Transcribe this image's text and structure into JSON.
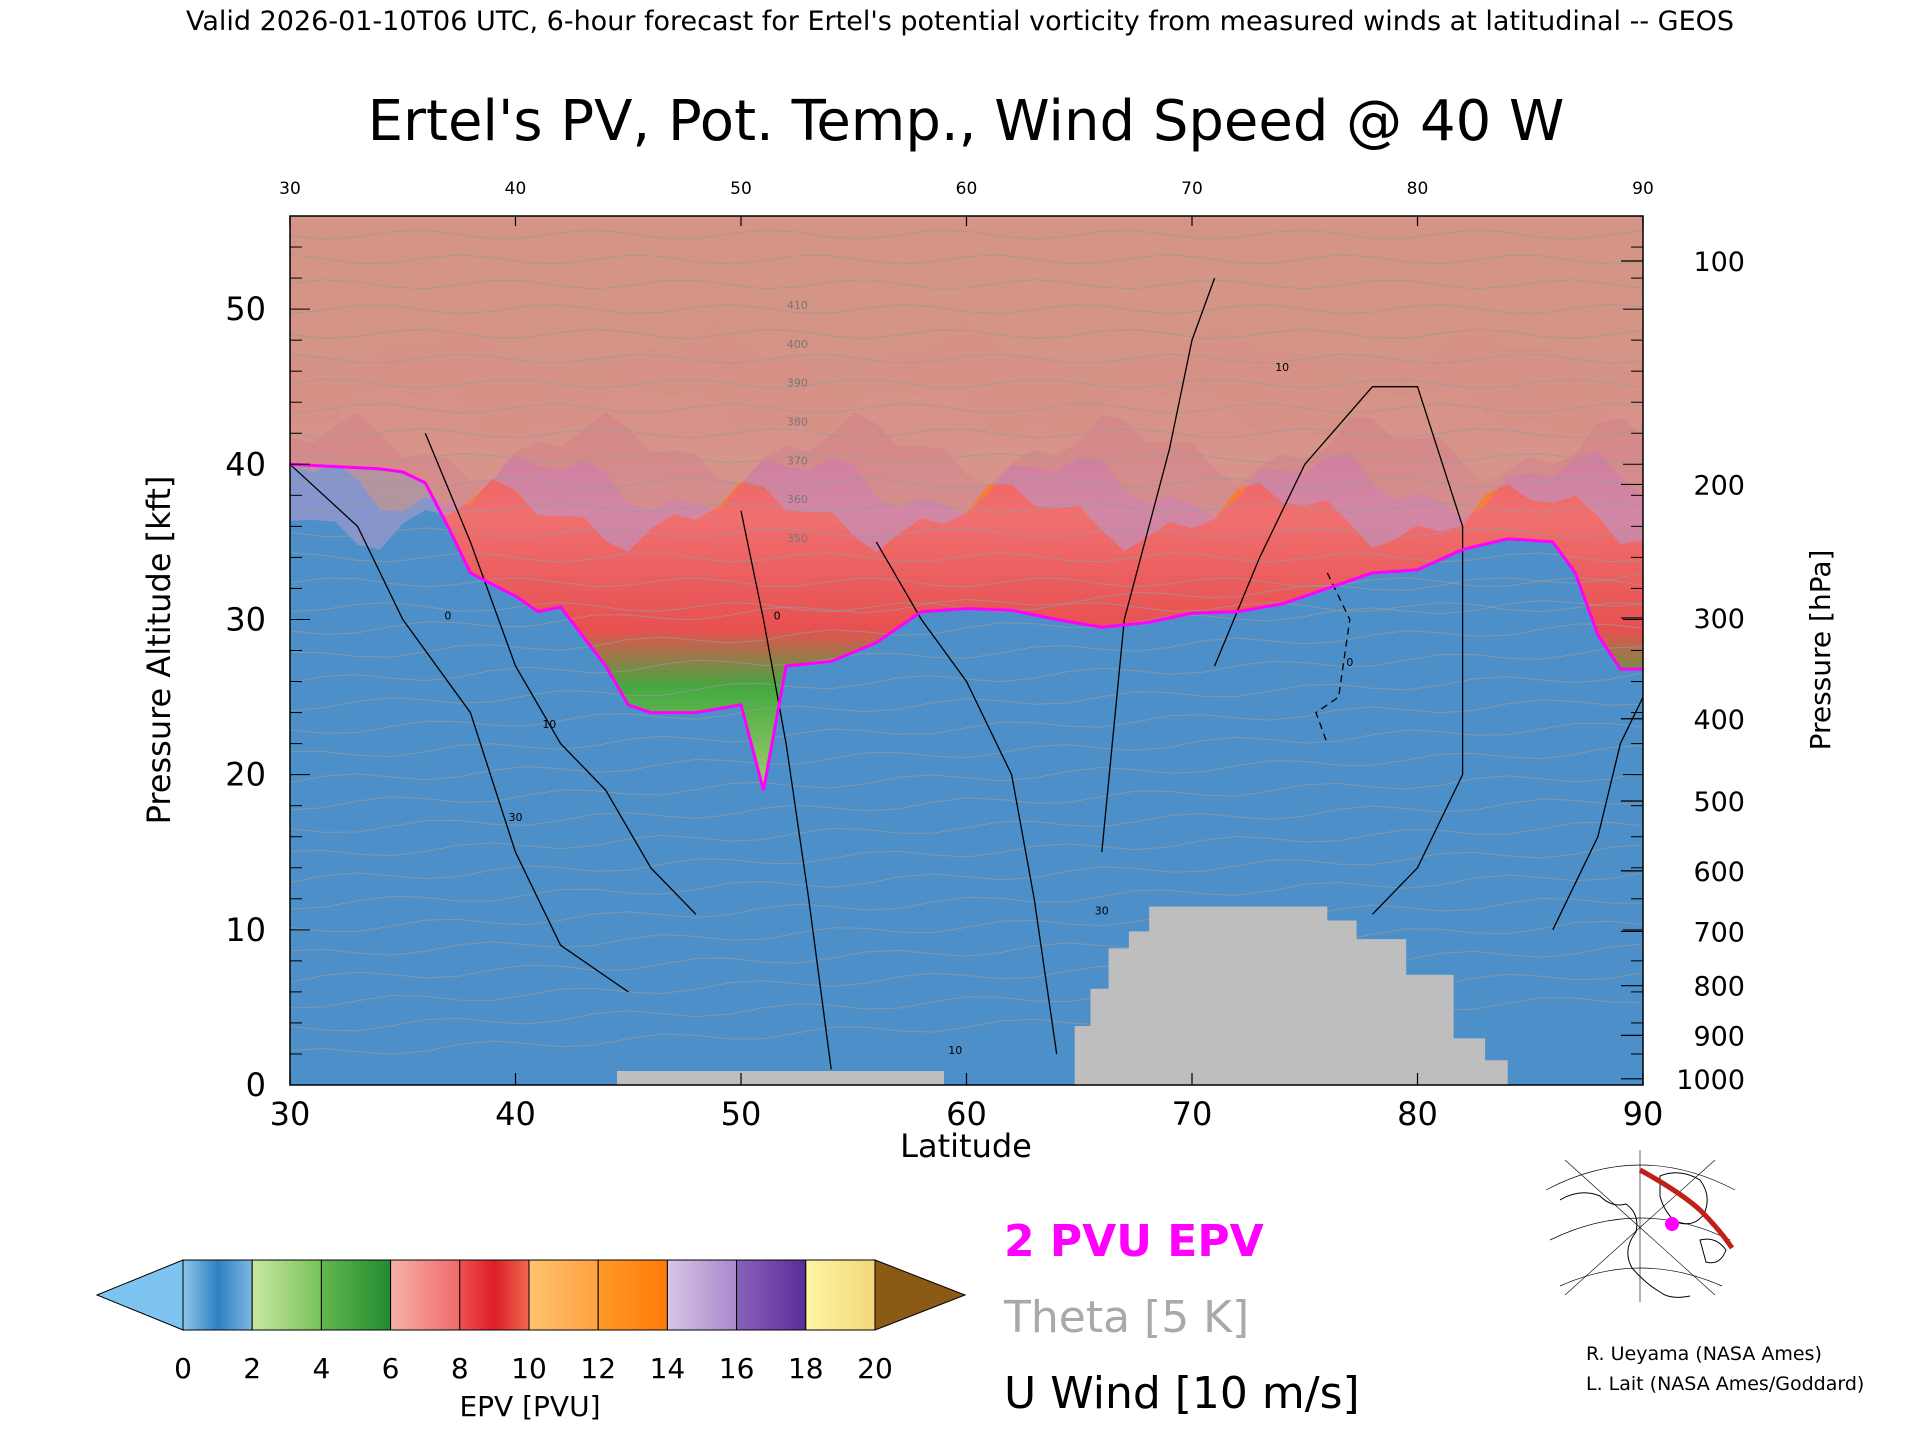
{
  "header": "Valid 2026-01-10T06 UTC, 6-hour forecast for Ertel's potential vorticity from measured winds at latitudinal -- GEOS",
  "chart_data": {
    "type": "heatmap",
    "title": "Ertel's PV, Pot. Temp., Wind Speed @ 40 W",
    "xlabel": "Latitude",
    "ylabel": "Pressure Altitude [kft]",
    "ylabel_right": "Pressure [hPa]",
    "xlim": [
      30,
      90
    ],
    "ylim": [
      0,
      56
    ],
    "x_ticks": [
      30,
      40,
      50,
      60,
      70,
      80,
      90
    ],
    "top_ticks": [
      30,
      40,
      50,
      60,
      70,
      80,
      90
    ],
    "y_ticks": [
      0,
      10,
      20,
      30,
      40,
      50
    ],
    "pressure_ticks": [
      {
        "label": "100",
        "kft": 53.1
      },
      {
        "label": "200",
        "kft": 38.7
      },
      {
        "label": "300",
        "kft": 30.1
      },
      {
        "label": "400",
        "kft": 23.6
      },
      {
        "label": "500",
        "kft": 18.3
      },
      {
        "label": "600",
        "kft": 13.8
      },
      {
        "label": "700",
        "kft": 9.9
      },
      {
        "label": "800",
        "kft": 6.4
      },
      {
        "label": "900",
        "kft": 3.2
      },
      {
        "label": "1000",
        "kft": 0.4
      }
    ],
    "pv2_boundary": [
      [
        30,
        40
      ],
      [
        34,
        39.7
      ],
      [
        35,
        39.5
      ],
      [
        36,
        38.8
      ],
      [
        37,
        36
      ],
      [
        38,
        33
      ],
      [
        40,
        31.5
      ],
      [
        41,
        30.5
      ],
      [
        42,
        30.8
      ],
      [
        44,
        27
      ],
      [
        45,
        24.5
      ],
      [
        46,
        24
      ],
      [
        48,
        24
      ],
      [
        50,
        24.5
      ],
      [
        51,
        19
      ],
      [
        52,
        27
      ],
      [
        54,
        27.3
      ],
      [
        56,
        28.5
      ],
      [
        58,
        30.5
      ],
      [
        60,
        30.7
      ],
      [
        62,
        30.6
      ],
      [
        64,
        30
      ],
      [
        66,
        29.5
      ],
      [
        68,
        29.8
      ],
      [
        70,
        30.4
      ],
      [
        72,
        30.5
      ],
      [
        74,
        31
      ],
      [
        76,
        32
      ],
      [
        78,
        33
      ],
      [
        80,
        33.2
      ],
      [
        82,
        34.5
      ],
      [
        84,
        35.2
      ],
      [
        86,
        35
      ],
      [
        87,
        33
      ],
      [
        88,
        29
      ],
      [
        89,
        26.8
      ],
      [
        90,
        26.8
      ]
    ],
    "epv_bands": [
      {
        "kft": 47.0,
        "pvu": 3.5
      },
      {
        "kft": 43.5,
        "pvu": 8.0
      },
      {
        "kft": 41.0,
        "pvu": 11.0
      },
      {
        "kft": 38.7,
        "pvu": 13.0
      },
      {
        "kft": 36.7,
        "pvu": 15.0
      }
    ],
    "colorbar": {
      "label": "EPV [PVU]",
      "ticks": [
        "0",
        "2",
        "4",
        "6",
        "8",
        "10",
        "12",
        "14",
        "16",
        "18",
        "20"
      ],
      "colors": [
        "#2f7fc4",
        "#9fd26c",
        "#3aa33b",
        "#f49a9a",
        "#e32d2d",
        "#ffb65c",
        "#ff8a10",
        "#b89ad2",
        "#6b3ea8",
        "#f4e88c"
      ],
      "under_color": "#7dc4f0",
      "over_color": "#8a5a16"
    },
    "terrain": [
      [
        44.5,
        0
      ],
      [
        44.5,
        0.9
      ],
      [
        59,
        0.9
      ],
      [
        59,
        0
      ],
      [
        64.8,
        0
      ],
      [
        64.8,
        3.8
      ],
      [
        65.5,
        3.8
      ],
      [
        65.5,
        6.2
      ],
      [
        66.3,
        6.2
      ],
      [
        66.3,
        8.8
      ],
      [
        67.2,
        8.8
      ],
      [
        67.2,
        9.9
      ],
      [
        68.1,
        9.9
      ],
      [
        68.1,
        11.5
      ],
      [
        76,
        11.5
      ],
      [
        76,
        10.6
      ],
      [
        77.3,
        10.6
      ],
      [
        77.3,
        9.4
      ],
      [
        79.5,
        9.4
      ],
      [
        79.5,
        7.1
      ],
      [
        81.6,
        7.1
      ],
      [
        81.6,
        3
      ],
      [
        83,
        3
      ],
      [
        83,
        1.6
      ],
      [
        84,
        1.6
      ],
      [
        84,
        0
      ]
    ],
    "u_wind_levels": [
      "0",
      "10",
      "30"
    ],
    "legend": [
      {
        "text": "2 PVU EPV",
        "color": "#ff00ff"
      },
      {
        "text": "Theta [5 K]",
        "color": "#a9a9a9"
      },
      {
        "text": "U Wind [10 m/s]",
        "color": "#000000"
      }
    ],
    "theta_labels": [
      "410",
      "400",
      "390",
      "380",
      "370",
      "360",
      "350"
    ]
  },
  "credits": [
    "R. Ueyama (NASA Ames)",
    "L. Lait (NASA Ames/Goddard)"
  ]
}
